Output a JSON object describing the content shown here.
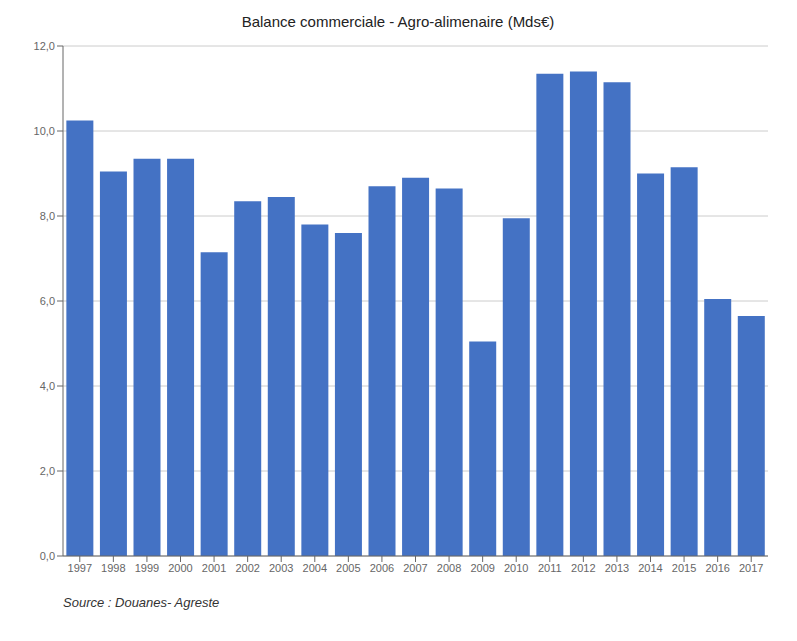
{
  "chart_data": {
    "type": "bar",
    "title": "Balance commerciale - Agro-alimenaire (Mds€)",
    "annotations": [
      "Source : Douanes- Agreste"
    ],
    "categories": [
      "1997",
      "1998",
      "1999",
      "2000",
      "2001",
      "2002",
      "2003",
      "2004",
      "2005",
      "2006",
      "2007",
      "2008",
      "2009",
      "2010",
      "2011",
      "2012",
      "2013",
      "2014",
      "2015",
      "2016",
      "2017"
    ],
    "values": [
      10.25,
      9.05,
      9.35,
      9.35,
      7.15,
      8.35,
      8.45,
      7.8,
      7.6,
      8.7,
      8.9,
      8.65,
      5.05,
      7.95,
      11.35,
      11.4,
      11.15,
      9.0,
      9.15,
      6.05,
      5.65
    ],
    "color": "#4472C4",
    "ylim": [
      0,
      12
    ],
    "yticks": [
      {
        "value": 0,
        "label": "0,0"
      },
      {
        "value": 2,
        "label": "2,0"
      },
      {
        "value": 4,
        "label": "4,0"
      },
      {
        "value": 6,
        "label": "6,0"
      },
      {
        "value": 8,
        "label": "8,0"
      },
      {
        "value": 10,
        "label": "10,0"
      },
      {
        "value": 12,
        "label": "12,0"
      }
    ],
    "grid": true
  }
}
